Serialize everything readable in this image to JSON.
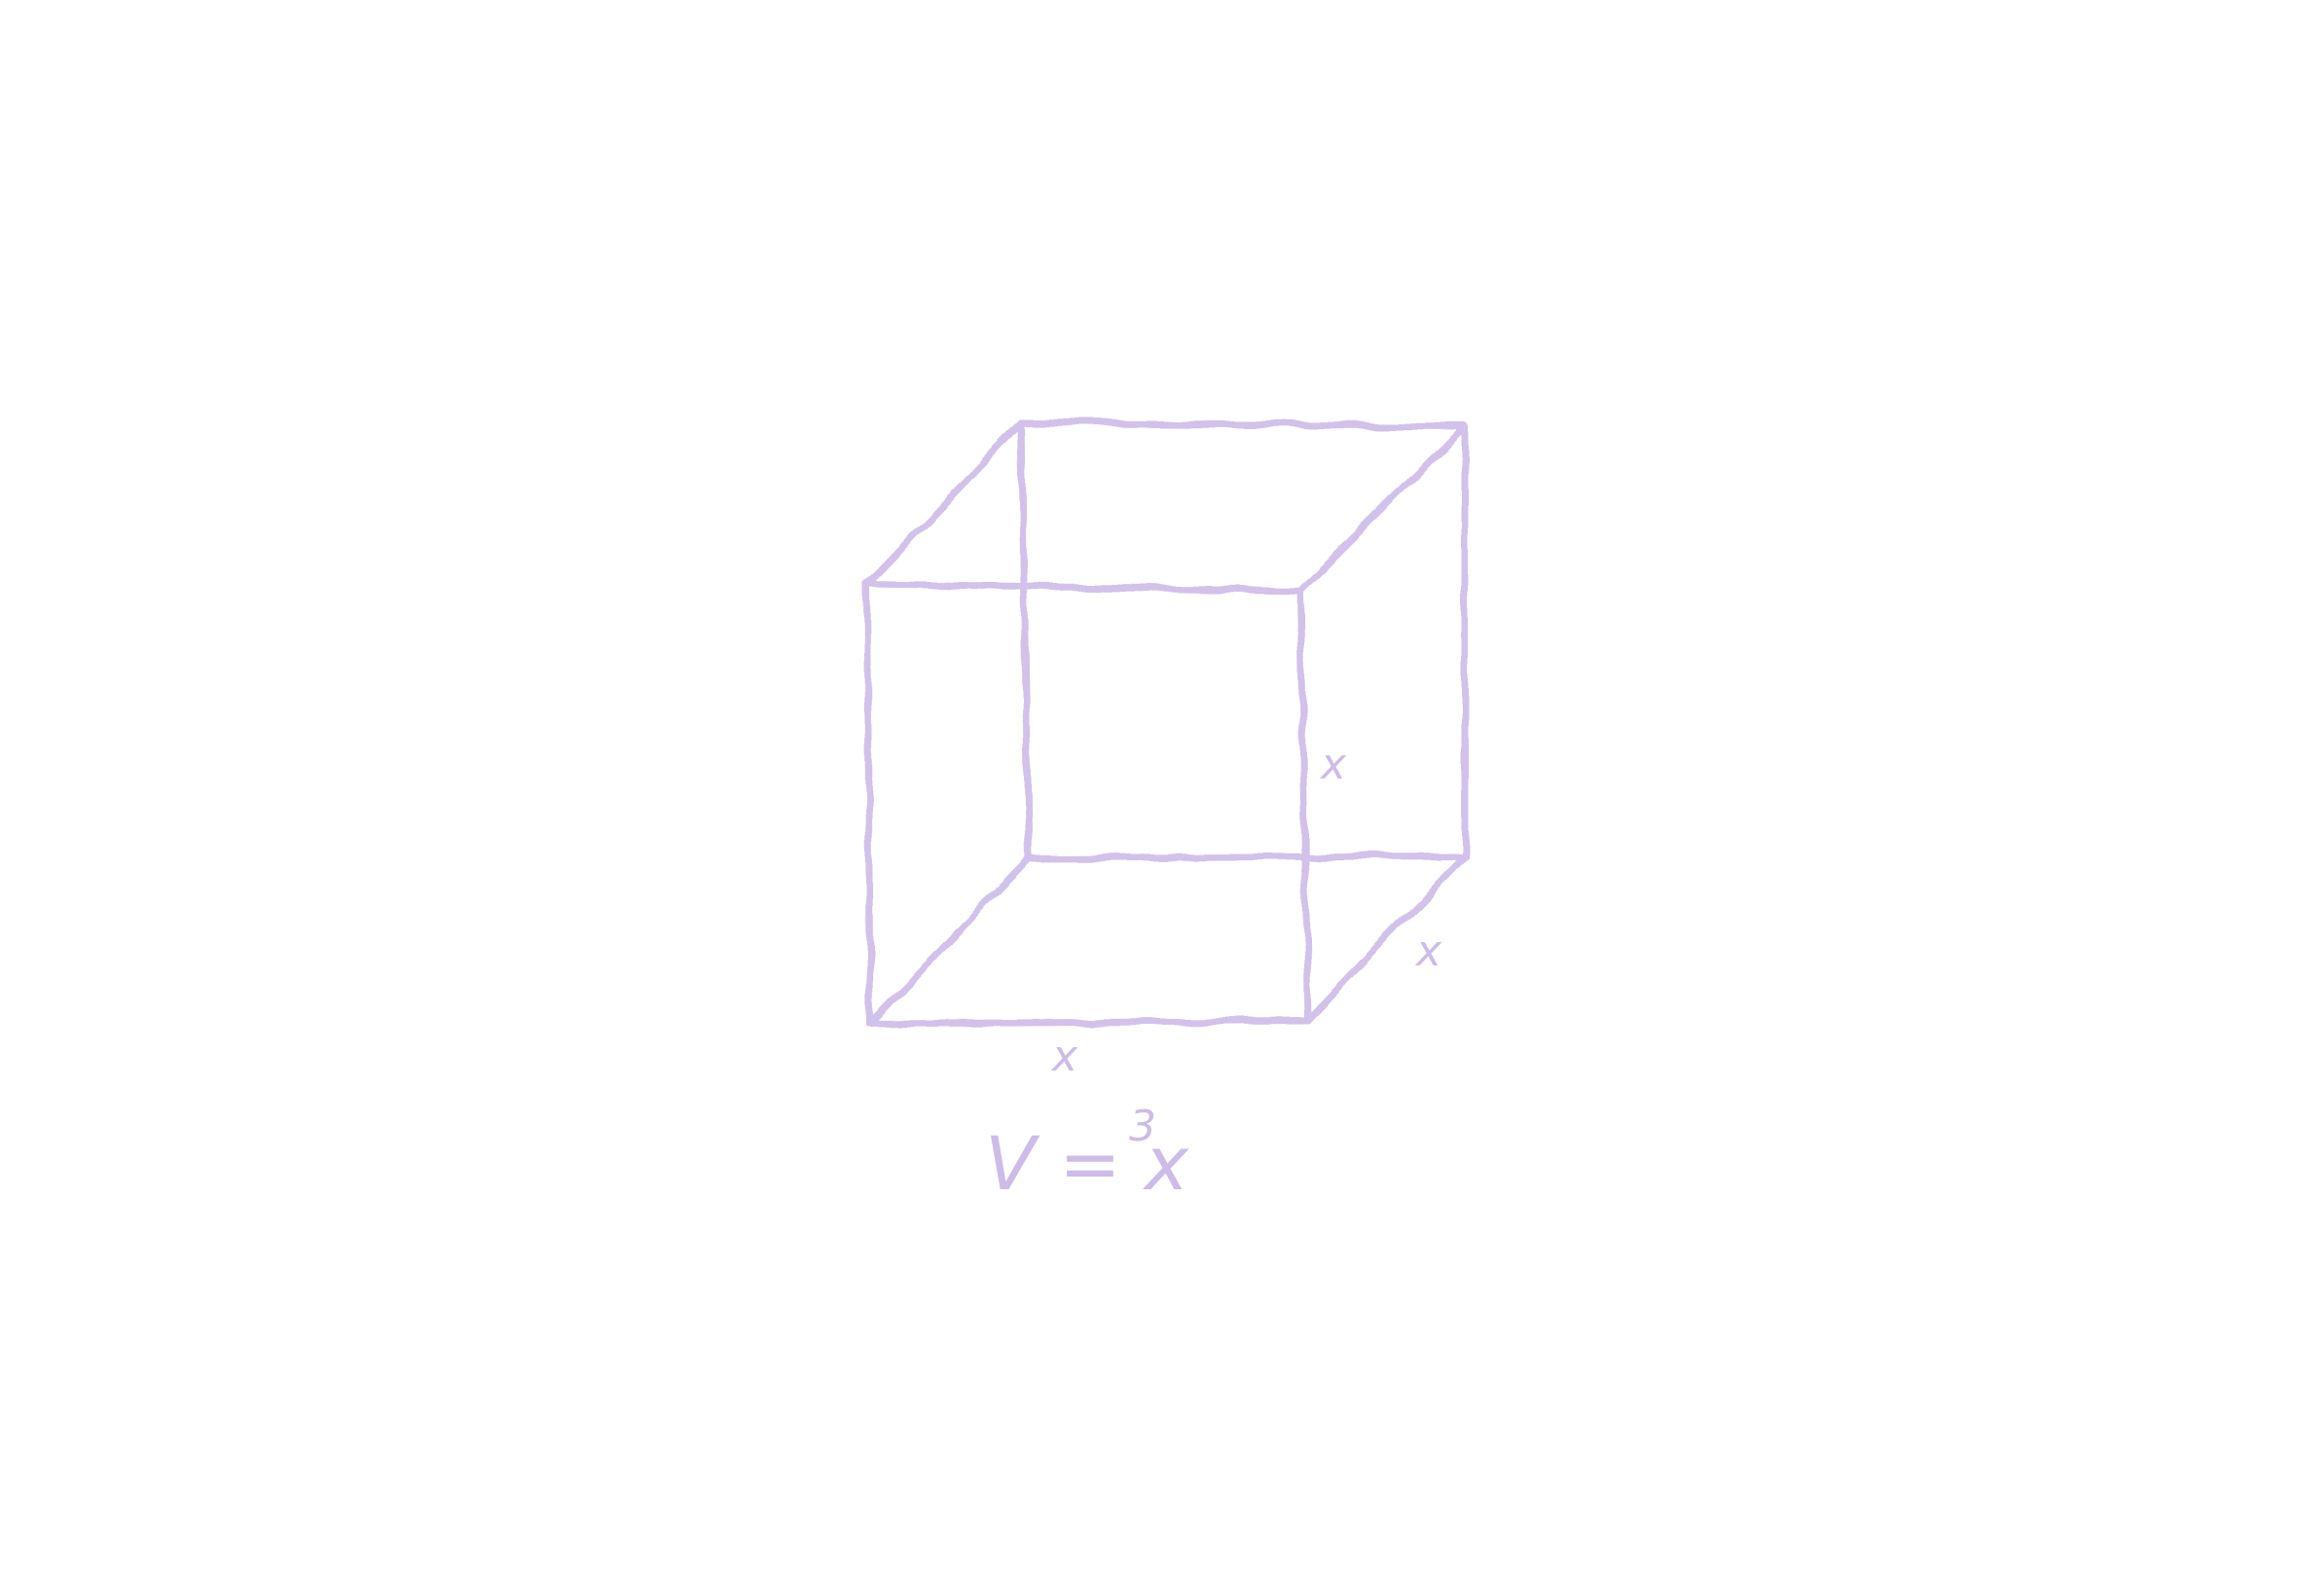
{
  "edge_labels": [
    "x",
    "x",
    "x"
  ],
  "formula": {
    "text": "V = x",
    "exponent": "3"
  }
}
